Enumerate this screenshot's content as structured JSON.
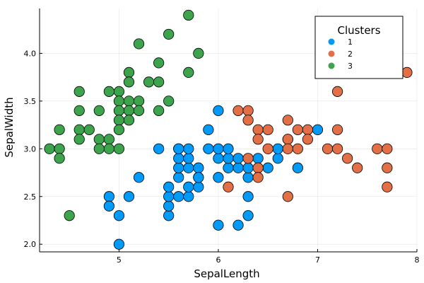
{
  "chart_data": {
    "type": "scatter",
    "xlabel": "SepalLength",
    "ylabel": "SepalWidth",
    "xlim": [
      4.2,
      8.0
    ],
    "ylim": [
      1.92,
      4.47
    ],
    "xticks": [
      5,
      6,
      7,
      8
    ],
    "xtick_labels": [
      "5",
      "6",
      "7",
      "8"
    ],
    "yticks": [
      2.0,
      2.5,
      3.0,
      3.5,
      4.0
    ],
    "ytick_labels": [
      "2.0",
      "2.5",
      "3.0",
      "3.5",
      "4.0"
    ],
    "grid": true,
    "legend": {
      "title": "Clusters",
      "position": "top-right"
    },
    "series": [
      {
        "name": "1",
        "color": "#009AF9",
        "points": [
          [
            5.0,
            2.0
          ],
          [
            4.9,
            2.5
          ],
          [
            4.9,
            2.4
          ],
          [
            5.0,
            2.3
          ],
          [
            5.1,
            2.5
          ],
          [
            5.2,
            2.7
          ],
          [
            5.4,
            3.0
          ],
          [
            5.5,
            2.3
          ],
          [
            5.5,
            2.4
          ],
          [
            5.5,
            2.5
          ],
          [
            5.5,
            2.6
          ],
          [
            5.6,
            2.5
          ],
          [
            5.6,
            2.7
          ],
          [
            5.6,
            2.8
          ],
          [
            5.6,
            2.9
          ],
          [
            5.6,
            3.0
          ],
          [
            5.7,
            2.5
          ],
          [
            5.7,
            2.6
          ],
          [
            5.7,
            2.8
          ],
          [
            5.7,
            2.9
          ],
          [
            5.7,
            3.0
          ],
          [
            5.8,
            2.6
          ],
          [
            5.8,
            2.7
          ],
          [
            5.8,
            2.8
          ],
          [
            5.9,
            3.0
          ],
          [
            5.8,
            2.7
          ],
          [
            6.0,
            2.2
          ],
          [
            6.0,
            2.7
          ],
          [
            6.0,
            2.9
          ],
          [
            6.0,
            3.0
          ],
          [
            6.0,
            3.4
          ],
          [
            6.1,
            2.8
          ],
          [
            6.1,
            2.9
          ],
          [
            6.1,
            3.0
          ],
          [
            6.2,
            2.2
          ],
          [
            6.2,
            2.8
          ],
          [
            6.2,
            2.9
          ],
          [
            6.3,
            2.3
          ],
          [
            6.3,
            2.5
          ],
          [
            6.3,
            2.7
          ],
          [
            6.3,
            2.8
          ],
          [
            6.4,
            2.9
          ],
          [
            6.5,
            2.8
          ],
          [
            6.6,
            2.9
          ],
          [
            6.6,
            3.0
          ],
          [
            6.8,
            2.8
          ],
          [
            7.0,
            3.2
          ],
          [
            5.9,
            3.2
          ],
          [
            5.6,
            3.0
          ],
          [
            6.7,
            3.1
          ]
        ]
      },
      {
        "name": "2",
        "color": "#E26F46",
        "points": [
          [
            7.9,
            3.8
          ],
          [
            7.2,
            3.6
          ],
          [
            6.2,
            3.4
          ],
          [
            6.3,
            3.4
          ],
          [
            6.3,
            3.3
          ],
          [
            6.4,
            3.2
          ],
          [
            6.5,
            3.2
          ],
          [
            6.7,
            3.3
          ],
          [
            6.7,
            3.1
          ],
          [
            6.8,
            3.2
          ],
          [
            6.9,
            3.2
          ],
          [
            6.9,
            3.1
          ],
          [
            7.2,
            3.2
          ],
          [
            6.4,
            3.1
          ],
          [
            6.5,
            3.0
          ],
          [
            6.7,
            3.0
          ],
          [
            6.8,
            3.0
          ],
          [
            7.1,
            3.0
          ],
          [
            7.2,
            3.0
          ],
          [
            7.6,
            3.0
          ],
          [
            7.7,
            3.0
          ],
          [
            6.3,
            2.9
          ],
          [
            7.3,
            2.9
          ],
          [
            6.4,
            2.8
          ],
          [
            7.4,
            2.8
          ],
          [
            7.7,
            2.8
          ],
          [
            6.4,
            2.7
          ],
          [
            6.1,
            2.6
          ],
          [
            7.7,
            2.6
          ],
          [
            6.7,
            2.5
          ]
        ]
      },
      {
        "name": "3",
        "color": "#3DA44D",
        "points": [
          [
            5.7,
            4.4
          ],
          [
            5.5,
            4.2
          ],
          [
            5.2,
            4.1
          ],
          [
            5.8,
            4.0
          ],
          [
            5.4,
            3.9
          ],
          [
            5.1,
            3.8
          ],
          [
            5.7,
            3.8
          ],
          [
            5.1,
            3.7
          ],
          [
            5.3,
            3.7
          ],
          [
            5.4,
            3.7
          ],
          [
            4.6,
            3.6
          ],
          [
            5.0,
            3.6
          ],
          [
            4.9,
            3.6
          ],
          [
            5.0,
            3.5
          ],
          [
            5.1,
            3.5
          ],
          [
            5.2,
            3.5
          ],
          [
            5.5,
            3.5
          ],
          [
            4.6,
            3.4
          ],
          [
            4.8,
            3.4
          ],
          [
            5.0,
            3.4
          ],
          [
            5.1,
            3.4
          ],
          [
            5.2,
            3.4
          ],
          [
            5.4,
            3.4
          ],
          [
            5.0,
            3.3
          ],
          [
            5.1,
            3.3
          ],
          [
            4.4,
            3.2
          ],
          [
            4.6,
            3.2
          ],
          [
            4.7,
            3.2
          ],
          [
            5.0,
            3.2
          ],
          [
            4.6,
            3.1
          ],
          [
            4.8,
            3.1
          ],
          [
            4.9,
            3.1
          ],
          [
            4.3,
            3.0
          ],
          [
            4.4,
            3.0
          ],
          [
            4.8,
            3.0
          ],
          [
            4.9,
            3.0
          ],
          [
            5.0,
            3.0
          ],
          [
            4.4,
            2.9
          ],
          [
            4.5,
            2.3
          ]
        ]
      }
    ]
  }
}
